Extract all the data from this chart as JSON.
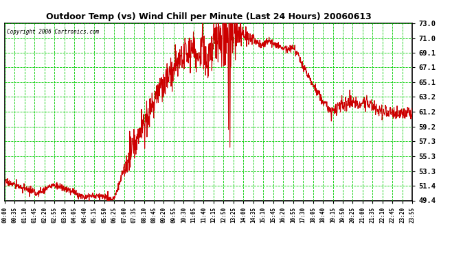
{
  "title": "Outdoor Temp (vs) Wind Chill per Minute (Last 24 Hours) 20060613",
  "copyright": "Copyright 2006 Cartronics.com",
  "background_color": "#ffffff",
  "plot_bg_color": "#ffffff",
  "grid_color": "#00cc00",
  "line_color": "#cc0000",
  "yticks": [
    49.4,
    51.4,
    53.3,
    55.3,
    57.3,
    59.2,
    61.2,
    63.2,
    65.1,
    67.1,
    69.1,
    71.0,
    73.0
  ],
  "ymin": 49.4,
  "ymax": 73.0,
  "xtick_labels": [
    "00:00",
    "00:35",
    "01:10",
    "01:45",
    "02:20",
    "02:55",
    "03:30",
    "04:05",
    "04:40",
    "05:15",
    "05:50",
    "06:25",
    "07:00",
    "07:35",
    "08:10",
    "08:45",
    "09:20",
    "09:55",
    "10:30",
    "11:05",
    "11:40",
    "12:15",
    "12:50",
    "13:25",
    "14:00",
    "14:35",
    "15:10",
    "15:45",
    "16:20",
    "16:55",
    "17:30",
    "18:05",
    "18:40",
    "19:15",
    "19:50",
    "20:25",
    "21:00",
    "21:35",
    "22:10",
    "22:45",
    "23:20",
    "23:55"
  ],
  "num_points": 1440,
  "seed": 17
}
